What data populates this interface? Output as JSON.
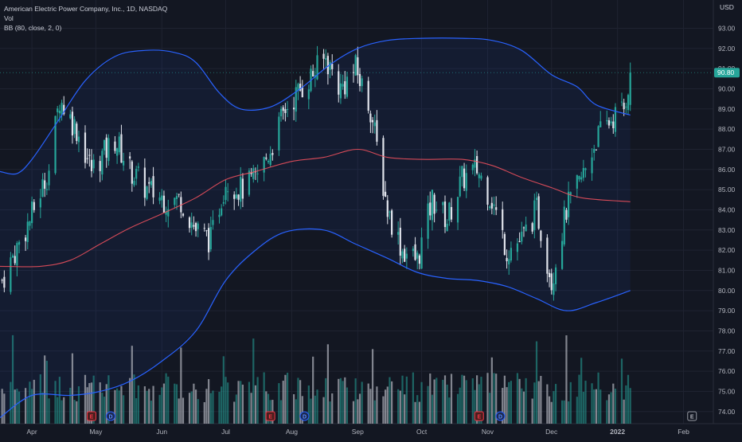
{
  "legend": {
    "symbol": "American Electric Power Company, Inc., 1D, NASDAQ",
    "volume": "Vol",
    "bb": "BB (80, close, 2, 0)"
  },
  "currency": "USD",
  "price_label": "90.80",
  "colors": {
    "up": "#26a69a",
    "down": "#e0e3eb",
    "bb_band": "#2962ff",
    "bb_basis": "#f7525f",
    "last_price": "#26a69a"
  },
  "chart_data": {
    "type": "candlestick",
    "y_axis": {
      "ticks": [
        "74.00",
        "75.00",
        "76.00",
        "77.00",
        "78.00",
        "79.00",
        "80.00",
        "81.00",
        "82.00",
        "83.00",
        "84.00",
        "85.00",
        "86.00",
        "87.00",
        "88.00",
        "89.00",
        "90.00",
        "91.00",
        "92.00",
        "93.00"
      ],
      "range": [
        73.4,
        94.4
      ]
    },
    "x_axis": {
      "ticks": [
        "Apr",
        "May",
        "Jun",
        "Jul",
        "Aug",
        "Sep",
        "Oct",
        "Nov",
        "Dec",
        "2022",
        "Feb"
      ],
      "range": [
        "2021-03-17",
        "2022-02-15"
      ]
    },
    "last_price": 90.8,
    "series": [
      {
        "name": "Close",
        "type": "line",
        "values": [
          [
            "2021-03-18",
            80.5
          ],
          [
            "2021-03-31",
            83.5
          ],
          [
            "2021-04-09",
            86.0
          ],
          [
            "2021-04-14",
            89.5
          ],
          [
            "2021-04-22",
            88.0
          ],
          [
            "2021-04-29",
            86.0
          ],
          [
            "2021-05-10",
            87.5
          ],
          [
            "2021-05-17",
            86.0
          ],
          [
            "2021-05-25",
            85.0
          ],
          [
            "2021-06-03",
            84.5
          ],
          [
            "2021-06-10",
            84.5
          ],
          [
            "2021-06-17",
            83.0
          ],
          [
            "2021-06-24",
            82.5
          ],
          [
            "2021-07-01",
            85.5
          ],
          [
            "2021-07-08",
            85.0
          ],
          [
            "2021-07-15",
            85.5
          ],
          [
            "2021-07-22",
            87.0
          ],
          [
            "2021-07-29",
            89.0
          ],
          [
            "2021-08-09",
            90.5
          ],
          [
            "2021-08-17",
            91.5
          ],
          [
            "2021-08-24",
            90.0
          ],
          [
            "2021-08-31",
            91.0
          ],
          [
            "2021-09-07",
            89.0
          ],
          [
            "2021-09-15",
            84.0
          ],
          [
            "2021-09-22",
            82.0
          ],
          [
            "2021-09-29",
            81.5
          ],
          [
            "2021-10-06",
            84.5
          ],
          [
            "2021-10-13",
            83.5
          ],
          [
            "2021-10-20",
            85.5
          ],
          [
            "2021-10-27",
            86.0
          ],
          [
            "2021-11-03",
            84.5
          ],
          [
            "2021-11-10",
            82.0
          ],
          [
            "2021-11-17",
            82.5
          ],
          [
            "2021-11-24",
            84.0
          ],
          [
            "2021-12-01",
            80.5
          ],
          [
            "2021-12-08",
            84.0
          ],
          [
            "2021-12-15",
            85.5
          ],
          [
            "2021-12-22",
            87.5
          ],
          [
            "2021-12-29",
            88.5
          ],
          [
            "2022-01-04",
            89.0
          ],
          [
            "2022-01-07",
            90.8
          ]
        ]
      },
      {
        "name": "BB Upper",
        "type": "line",
        "values": [
          [
            "2021-03-17",
            85.9
          ],
          [
            "2021-03-25",
            85.8
          ],
          [
            "2021-04-01",
            86.5
          ],
          [
            "2021-04-12",
            88.2
          ],
          [
            "2021-04-26",
            90.4
          ],
          [
            "2021-05-10",
            91.6
          ],
          [
            "2021-05-24",
            91.9
          ],
          [
            "2021-06-07",
            91.8
          ],
          [
            "2021-06-17",
            91.3
          ],
          [
            "2021-06-28",
            89.8
          ],
          [
            "2021-07-08",
            89.0
          ],
          [
            "2021-07-22",
            89.1
          ],
          [
            "2021-08-05",
            90.0
          ],
          [
            "2021-08-19",
            91.2
          ],
          [
            "2021-09-01",
            92.0
          ],
          [
            "2021-09-15",
            92.4
          ],
          [
            "2021-10-01",
            92.5
          ],
          [
            "2021-10-20",
            92.5
          ],
          [
            "2021-11-03",
            92.4
          ],
          [
            "2021-11-17",
            91.9
          ],
          [
            "2021-12-01",
            90.7
          ],
          [
            "2021-12-13",
            90.1
          ],
          [
            "2021-12-22",
            89.2
          ],
          [
            "2022-01-07",
            88.7
          ]
        ]
      },
      {
        "name": "BB Basis",
        "type": "line",
        "values": [
          [
            "2021-03-17",
            81.2
          ],
          [
            "2021-04-05",
            81.2
          ],
          [
            "2021-04-19",
            81.5
          ],
          [
            "2021-05-03",
            82.3
          ],
          [
            "2021-05-17",
            83.1
          ],
          [
            "2021-06-01",
            83.8
          ],
          [
            "2021-06-17",
            84.6
          ],
          [
            "2021-07-01",
            85.5
          ],
          [
            "2021-07-15",
            85.9
          ],
          [
            "2021-08-01",
            86.4
          ],
          [
            "2021-08-16",
            86.6
          ],
          [
            "2021-09-01",
            87.0
          ],
          [
            "2021-09-15",
            86.6
          ],
          [
            "2021-10-01",
            86.5
          ],
          [
            "2021-10-20",
            86.5
          ],
          [
            "2021-11-03",
            86.2
          ],
          [
            "2021-11-17",
            85.6
          ],
          [
            "2021-12-01",
            85.1
          ],
          [
            "2021-12-15",
            84.6
          ],
          [
            "2022-01-07",
            84.4
          ]
        ]
      },
      {
        "name": "BB Lower",
        "type": "line",
        "values": [
          [
            "2021-03-17",
            73.7
          ],
          [
            "2021-04-01",
            74.8
          ],
          [
            "2021-04-19",
            74.8
          ],
          [
            "2021-05-03",
            75.0
          ],
          [
            "2021-05-17",
            75.5
          ],
          [
            "2021-06-01",
            76.5
          ],
          [
            "2021-06-17",
            78.0
          ],
          [
            "2021-07-01",
            80.5
          ],
          [
            "2021-07-15",
            82.0
          ],
          [
            "2021-07-29",
            82.9
          ],
          [
            "2021-08-16",
            83.0
          ],
          [
            "2021-08-31",
            82.3
          ],
          [
            "2021-09-15",
            81.6
          ],
          [
            "2021-09-29",
            80.9
          ],
          [
            "2021-10-13",
            80.6
          ],
          [
            "2021-10-27",
            80.5
          ],
          [
            "2021-11-10",
            80.2
          ],
          [
            "2021-11-24",
            79.6
          ],
          [
            "2021-12-08",
            79.0
          ],
          [
            "2021-12-22",
            79.4
          ],
          [
            "2022-01-07",
            80.0
          ]
        ]
      }
    ],
    "volume": {
      "name": "Vol"
    },
    "event_markers": [
      {
        "date": "2021-04-29",
        "label": "E"
      },
      {
        "date": "2021-05-08",
        "label": "D"
      },
      {
        "date": "2021-07-22",
        "label": "E"
      },
      {
        "date": "2021-08-07",
        "label": "D"
      },
      {
        "date": "2021-10-28",
        "label": "E"
      },
      {
        "date": "2021-11-07",
        "label": "D"
      },
      {
        "date": "2022-02-05",
        "label": "E"
      }
    ]
  }
}
